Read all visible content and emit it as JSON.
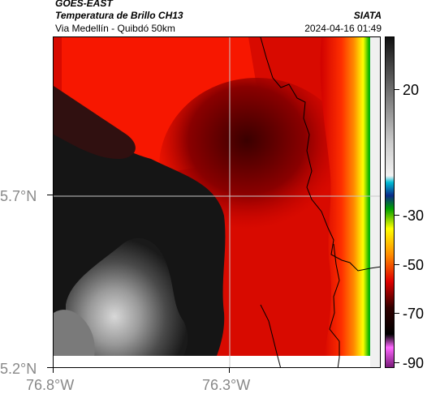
{
  "header": {
    "satellite": "GOES-EAST",
    "product": "Temperatura de Brillo CH13",
    "region": "Via Medellín - Quibdó 50km",
    "source": "SIATA",
    "timestamp": "2024-04-16 01:49"
  },
  "axes": {
    "lat_ticks": [
      "5.7°N",
      "5.2°N"
    ],
    "lon_ticks": [
      "76.8°W",
      "76.3°W"
    ]
  },
  "colorbar": {
    "tick_labels": [
      "20",
      "-30",
      "-50",
      "-70",
      "-90"
    ],
    "stops": [
      {
        "offset": 0.0,
        "color": "#111111"
      },
      {
        "offset": 0.32,
        "color": "#cccccc"
      },
      {
        "offset": 0.42,
        "color": "#f2f2f2"
      },
      {
        "offset": 0.44,
        "color": "#00bcd4"
      },
      {
        "offset": 0.48,
        "color": "#0a2a8a"
      },
      {
        "offset": 0.52,
        "color": "#00a000"
      },
      {
        "offset": 0.58,
        "color": "#ffff00"
      },
      {
        "offset": 0.66,
        "color": "#ff8c00"
      },
      {
        "offset": 0.74,
        "color": "#e00000"
      },
      {
        "offset": 0.82,
        "color": "#300000"
      },
      {
        "offset": 0.9,
        "color": "#000000"
      },
      {
        "offset": 0.94,
        "color": "#ff66ff"
      },
      {
        "offset": 1.0,
        "color": "#7a1a7a"
      }
    ]
  },
  "colors": {
    "grid": "#c8c8c8",
    "border_line": "#000000",
    "cold_cloud_edge": "#ffff00"
  }
}
